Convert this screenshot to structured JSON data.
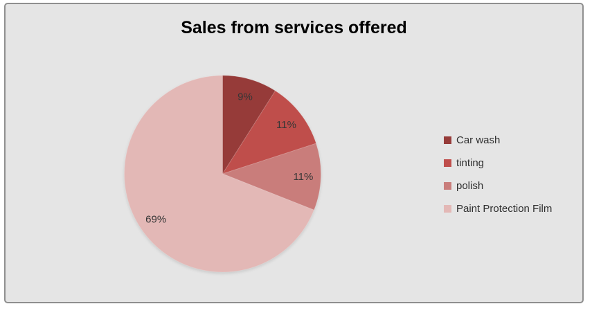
{
  "frame": {
    "background": "#E5E5E5",
    "border_color": "#8F8F8F",
    "page_background": "#FFFFFF"
  },
  "chart_data": {
    "type": "pie",
    "title": "Sales from services offered",
    "title_color": "#000000",
    "categories": [
      "Car wash",
      "tinting",
      "polish",
      "Paint Protection Film"
    ],
    "values": [
      9,
      11,
      11,
      69
    ],
    "data_labels": [
      "9%",
      "11%",
      "11%",
      "69%"
    ],
    "colors": [
      "#963B39",
      "#BF4E4B",
      "#C97D7B",
      "#E3B8B6"
    ],
    "label_color": "#363636",
    "start_angle_deg": 0,
    "direction": "clockwise",
    "legend_position": "right",
    "grid": false
  },
  "legend": {
    "items": [
      {
        "label": "Car wash",
        "color": "#963B39"
      },
      {
        "label": "tinting",
        "color": "#BF4E4B"
      },
      {
        "label": "polish",
        "color": "#C97D7B"
      },
      {
        "label": "Paint Protection Film",
        "color": "#E3B8B6"
      }
    ]
  }
}
